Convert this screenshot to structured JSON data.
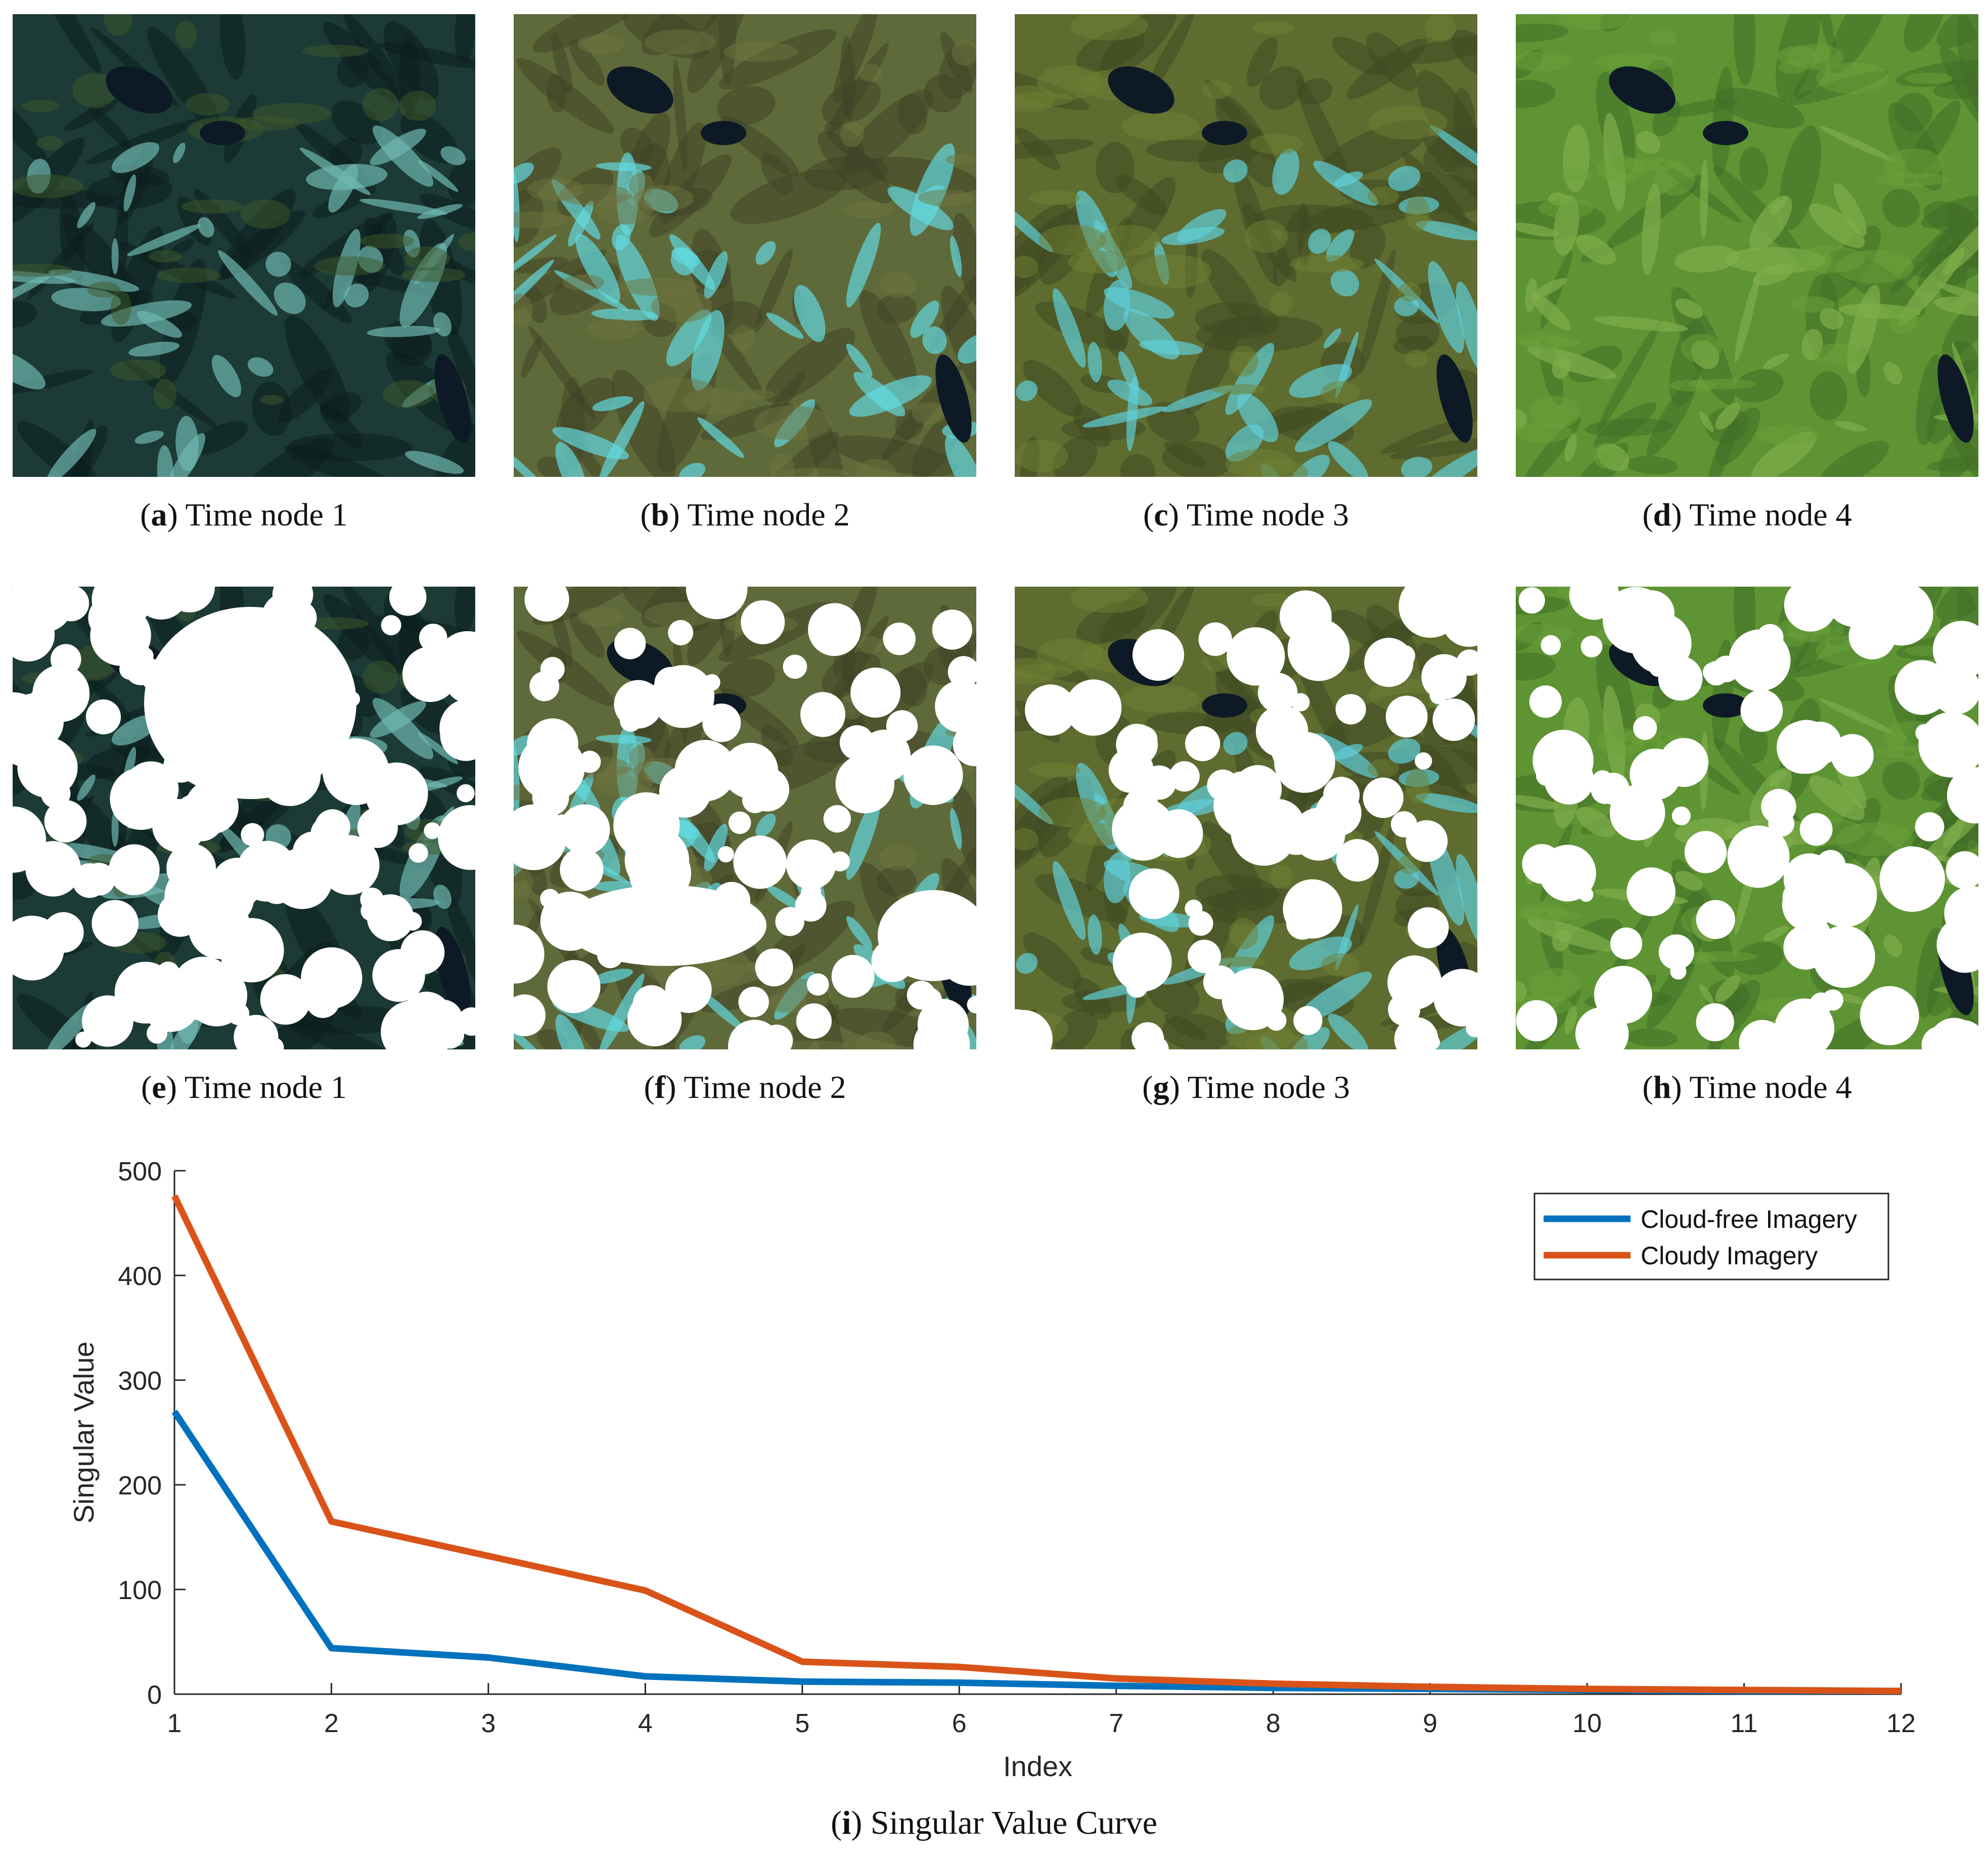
{
  "panels": [
    {
      "letter": "a",
      "label": "Time node 1",
      "colors": {
        "base": "#1c3a36",
        "shade": "#0b1e1e",
        "snow": "#6fb8b0",
        "vege": "#3d5a2a"
      },
      "cloudy": false
    },
    {
      "letter": "b",
      "label": "Time node 2",
      "colors": {
        "base": "#5f6a3a",
        "shade": "#3f4427",
        "snow": "#63d8de",
        "vege": "#70743f"
      },
      "cloudy": false
    },
    {
      "letter": "c",
      "label": "Time node 3",
      "colors": {
        "base": "#5e6c30",
        "shade": "#3f4a22",
        "snow": "#5fcfd9",
        "vege": "#6f7f32"
      },
      "cloudy": false
    },
    {
      "letter": "d",
      "label": "Time node 4",
      "colors": {
        "base": "#5e9433",
        "shade": "#3f6d26",
        "snow": "#7fae4a",
        "vege": "#6aa13a"
      },
      "cloudy": false
    },
    {
      "letter": "e",
      "label": "Time node 1",
      "colors": {
        "base": "#1c3a36",
        "shade": "#0b1e1e",
        "snow": "#6fb8b0",
        "vege": "#3d5a2a"
      },
      "cloudy": true
    },
    {
      "letter": "f",
      "label": "Time node 2",
      "colors": {
        "base": "#5f6a3a",
        "shade": "#3f4427",
        "snow": "#63d8de",
        "vege": "#70743f"
      },
      "cloudy": true
    },
    {
      "letter": "g",
      "label": "Time node 3",
      "colors": {
        "base": "#5e6c30",
        "shade": "#3f4a22",
        "snow": "#5fcfd9",
        "vege": "#6f7f32"
      },
      "cloudy": true
    },
    {
      "letter": "h",
      "label": "Time node 4",
      "colors": {
        "base": "#5e9433",
        "shade": "#3f6d26",
        "snow": "#7fae4a",
        "vege": "#6aa13a"
      },
      "cloudy": true
    }
  ],
  "chart_caption": {
    "letter": "i",
    "label": "Singular Value Curve"
  },
  "chart_data": {
    "type": "line",
    "x": [
      1,
      2,
      3,
      4,
      5,
      6,
      7,
      8,
      9,
      10,
      11,
      12
    ],
    "series": [
      {
        "name": "Cloud-free Imagery",
        "color": "#0072bd",
        "values": [
          270,
          44,
          35,
          17,
          12,
          11,
          8,
          6,
          5,
          4,
          3,
          3
        ]
      },
      {
        "name": "Cloudy Imagery",
        "color": "#d95319",
        "values": [
          476,
          165,
          132,
          99,
          31,
          26,
          15,
          10,
          7,
          5,
          4,
          3
        ]
      }
    ],
    "xlabel": "Index",
    "ylabel": "Singular Value",
    "xlim": [
      1,
      12
    ],
    "ylim": [
      0,
      500
    ],
    "xticks": [
      1,
      2,
      3,
      4,
      5,
      6,
      7,
      8,
      9,
      10,
      11,
      12
    ],
    "yticks": [
      0,
      100,
      200,
      300,
      400,
      500
    ],
    "grid": false,
    "legend": "top-right"
  }
}
